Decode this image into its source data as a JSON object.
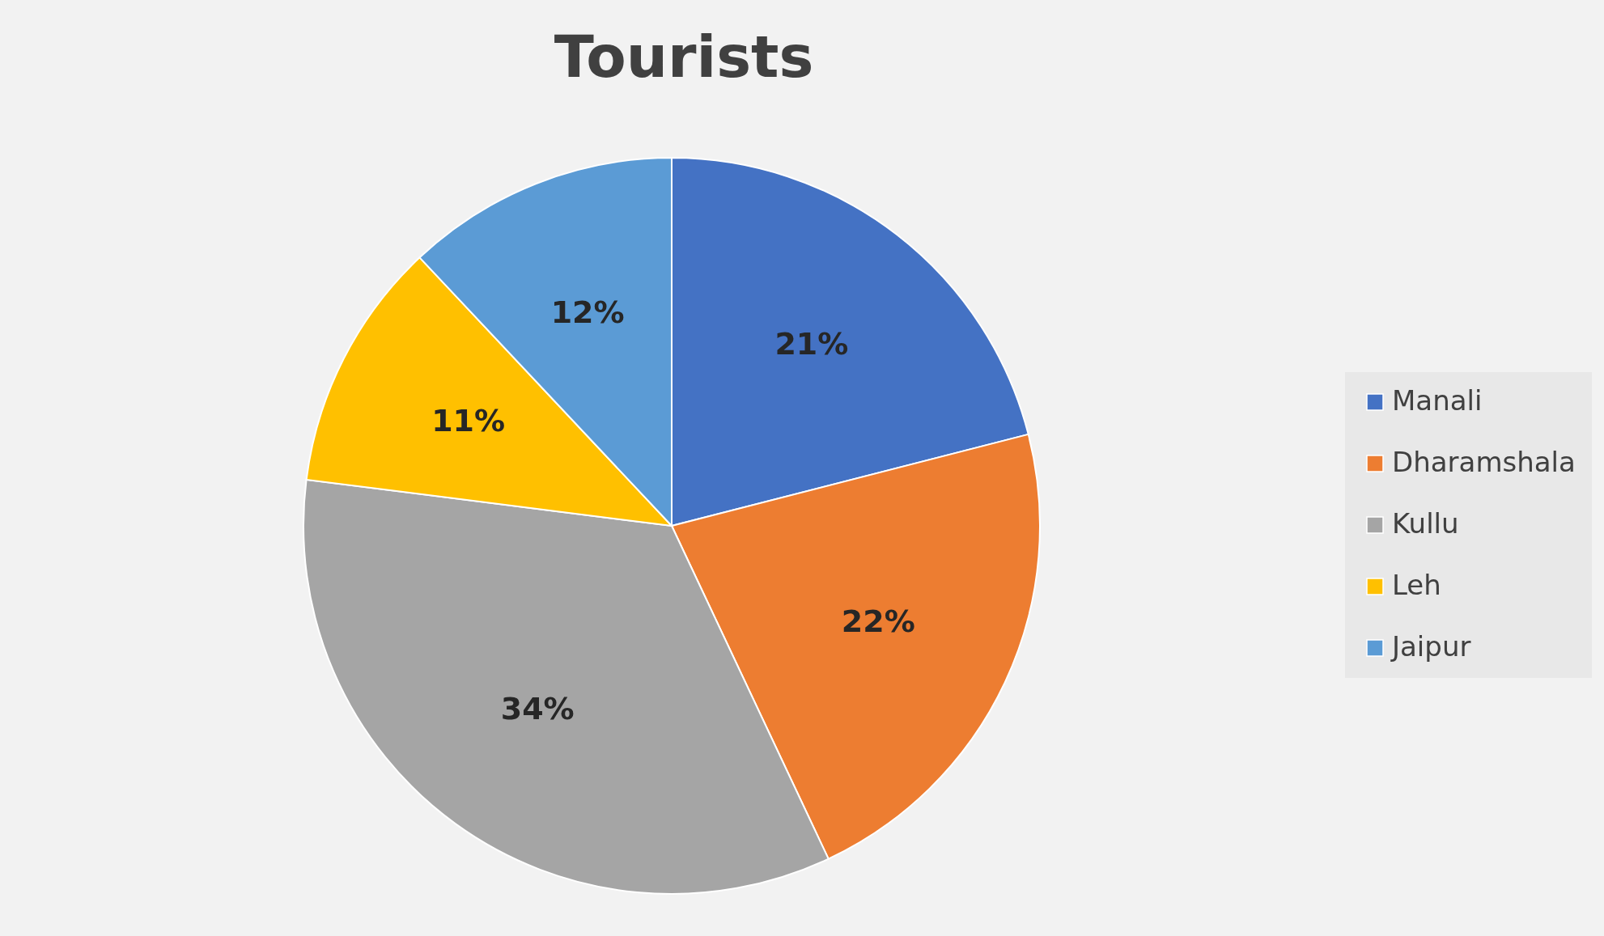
{
  "chart_data": {
    "type": "pie",
    "title": "Tourists",
    "categories": [
      "Manali",
      "Dharamshala",
      "Kullu",
      "Leh",
      "Jaipur"
    ],
    "values": [
      21,
      22,
      34,
      11,
      12
    ],
    "colors": [
      "#4472c4",
      "#ed7d31",
      "#a5a5a5",
      "#ffc000",
      "#5b9bd5"
    ],
    "value_labels": [
      "21%",
      "22%",
      "34%",
      "11%",
      "12%"
    ],
    "legend": "right"
  }
}
